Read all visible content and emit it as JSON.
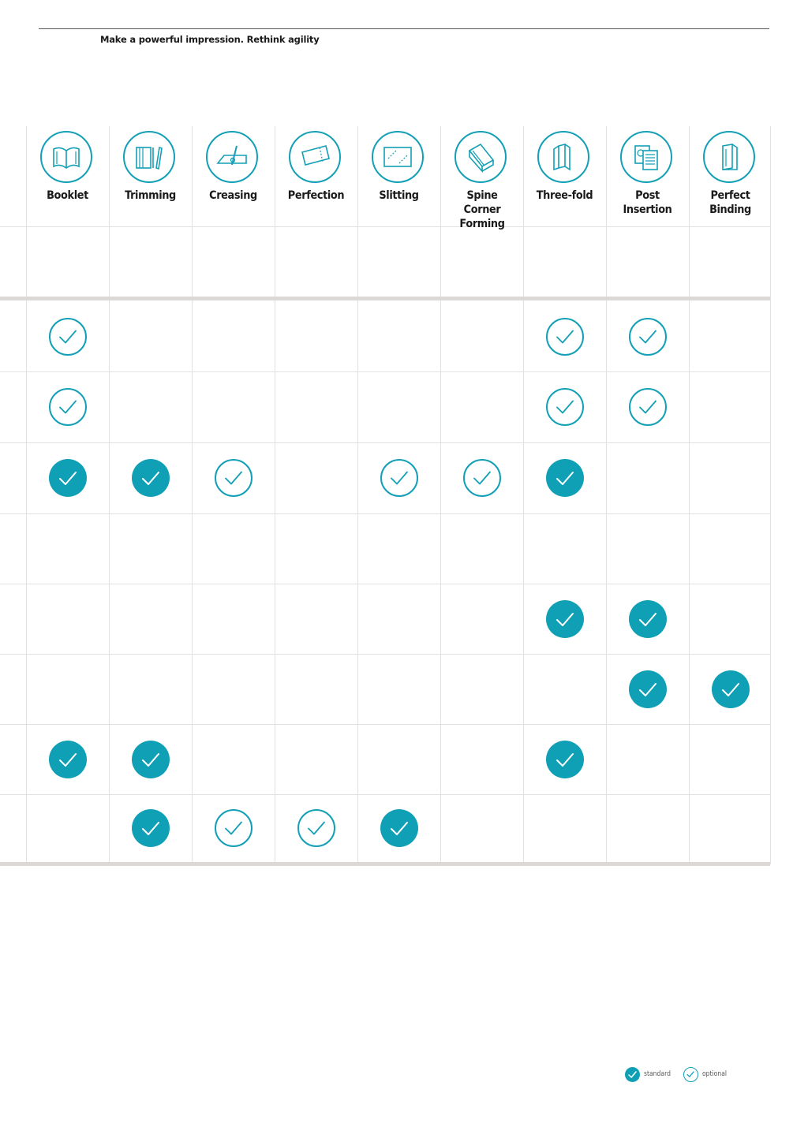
{
  "header": {
    "tagline": "Make a powerful impression. Rethink agility"
  },
  "columns": [
    {
      "label": "Booklet",
      "icon": "booklet-icon"
    },
    {
      "label": "Trimming",
      "icon": "trimming-icon"
    },
    {
      "label": "Creasing",
      "icon": "creasing-icon"
    },
    {
      "label": "Perfection",
      "icon": "perfection-icon"
    },
    {
      "label": "Slitting",
      "icon": "slitting-icon"
    },
    {
      "label": "Spine Corner Forming",
      "icon": "spine-corner-forming-icon"
    },
    {
      "label": "Three-fold",
      "icon": "three-fold-icon"
    },
    {
      "label": "Post Insertion",
      "icon": "post-insertion-icon"
    },
    {
      "label": "Perfect Binding",
      "icon": "perfect-binding-icon"
    }
  ],
  "rows": [
    [
      "",
      "",
      "",
      "",
      "",
      "",
      "",
      "",
      ""
    ],
    [
      "optional",
      "",
      "",
      "",
      "",
      "",
      "optional",
      "optional",
      ""
    ],
    [
      "optional",
      "",
      "",
      "",
      "",
      "",
      "optional",
      "optional",
      ""
    ],
    [
      "standard",
      "standard",
      "optional",
      "",
      "optional",
      "optional",
      "standard",
      "",
      ""
    ],
    [
      "",
      "",
      "",
      "",
      "",
      "",
      "",
      "",
      ""
    ],
    [
      "",
      "",
      "",
      "",
      "",
      "",
      "standard",
      "standard",
      ""
    ],
    [
      "",
      "",
      "",
      "",
      "",
      "",
      "",
      "standard",
      "standard"
    ],
    [
      "standard",
      "standard",
      "",
      "",
      "",
      "",
      "standard",
      "",
      ""
    ],
    [
      "",
      "standard",
      "optional",
      "optional",
      "standard",
      "",
      "",
      "",
      ""
    ]
  ],
  "legend": {
    "standard_label": "standard",
    "optional_label": "optional"
  },
  "colors": {
    "accent": "#13a0b6",
    "band": "#dcd8d5",
    "grid": "#e2e2e2"
  }
}
